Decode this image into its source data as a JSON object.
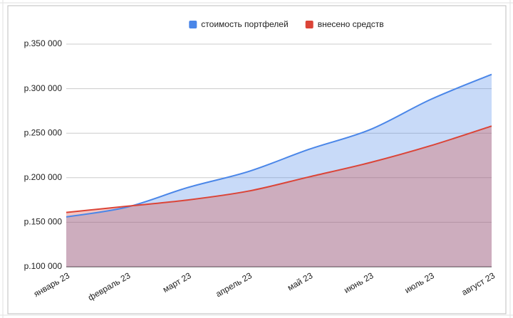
{
  "chart_data": {
    "type": "area",
    "categories": [
      "январь 23",
      "февраль 23",
      "март 23",
      "апрель 23",
      "май 23",
      "июнь 23",
      "июль 23",
      "август 23"
    ],
    "series": [
      {
        "name": "стоимость портфелей",
        "color": "#4a86e8",
        "values": [
          156000,
          167000,
          189000,
          207000,
          232000,
          254000,
          288000,
          316000
        ]
      },
      {
        "name": "внесено средств",
        "color": "#db4437",
        "values": [
          161000,
          168000,
          175000,
          185000,
          201000,
          217000,
          236000,
          258000
        ]
      }
    ],
    "ylim": [
      100000,
      350000
    ],
    "yticks": [
      {
        "value": 100000,
        "label": "р.100 000"
      },
      {
        "value": 150000,
        "label": "р.150 000"
      },
      {
        "value": 200000,
        "label": "р.200 000"
      },
      {
        "value": 250000,
        "label": "р.250 000"
      },
      {
        "value": 300000,
        "label": "р.300 000"
      },
      {
        "value": 350000,
        "label": "р.350 000"
      }
    ],
    "grid": true,
    "legend": "top",
    "smooth": true
  }
}
